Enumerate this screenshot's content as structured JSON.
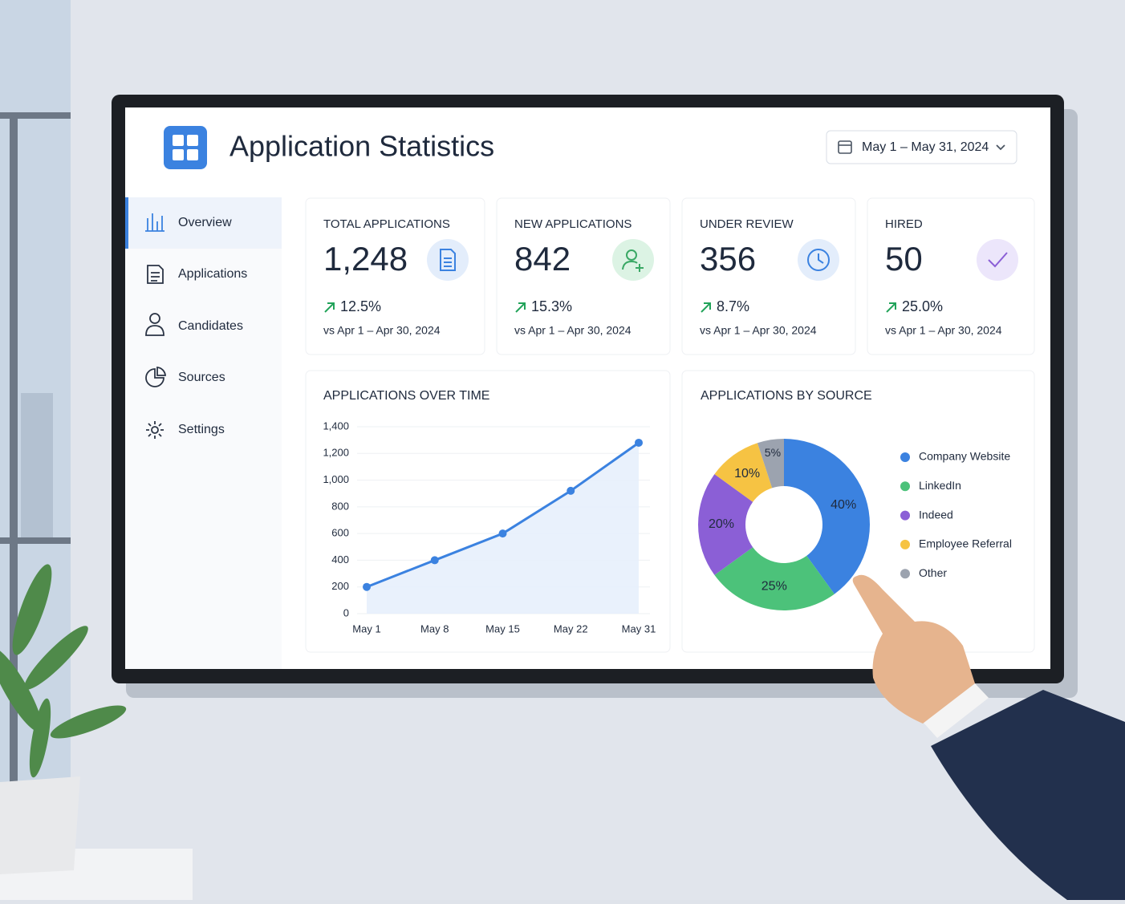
{
  "header": {
    "title": "Application Statistics",
    "date_range": "May 1 – May 31, 2024"
  },
  "nav": [
    "Overview",
    "Applications",
    "Candidates",
    "Sources",
    "Settings"
  ],
  "stats": [
    {
      "label": "TOTAL APPLICATIONS",
      "value": "1,248",
      "change": "12.5%",
      "comparison": "vs Apr 1 – Apr 30, 2024"
    },
    {
      "label": "NEW APPLICATIONS",
      "value": "842",
      "change": "15.3%",
      "comparison": "vs Apr 1 – Apr 30, 2024"
    },
    {
      "label": "UNDER REVIEW",
      "value": "356",
      "change": "8.7%",
      "comparison": "vs Apr 1 – Apr 30, 2024"
    },
    {
      "label": "HIRED",
      "value": "50",
      "change": "25.0%",
      "comparison": "vs Apr 1 – Apr 30, 2024"
    }
  ],
  "chart_data": [
    {
      "type": "line",
      "title": "APPLICATIONS OVER TIME",
      "categories": [
        "May 1",
        "May 8",
        "May 15",
        "May 22",
        "May 31"
      ],
      "values": [
        200,
        400,
        600,
        920,
        1280
      ],
      "color": "#3b82e0",
      "ylim": [
        0,
        1400
      ],
      "yticks": [
        0,
        200,
        400,
        600,
        800,
        {
          "value": 1000,
          "label": "1,000"
        },
        {
          "value": 1200,
          "label": "1,200"
        },
        {
          "value": 1400,
          "label": "1,400"
        }
      ],
      "grid": true
    },
    {
      "type": "pie",
      "title": "APPLICATIONS BY SOURCE",
      "categories": [
        "Company Website",
        "LinkedIn",
        "Indeed",
        "Employee Referral",
        "Other"
      ],
      "values": [
        40,
        25,
        20,
        10,
        5
      ],
      "value_labels": [
        "40%",
        "25%",
        "20%",
        "10%",
        "5%"
      ],
      "colors": [
        "#3b82e0",
        "#4cc27a",
        "#8b5fd6",
        "#f6c343",
        "#9ca3af"
      ]
    }
  ]
}
